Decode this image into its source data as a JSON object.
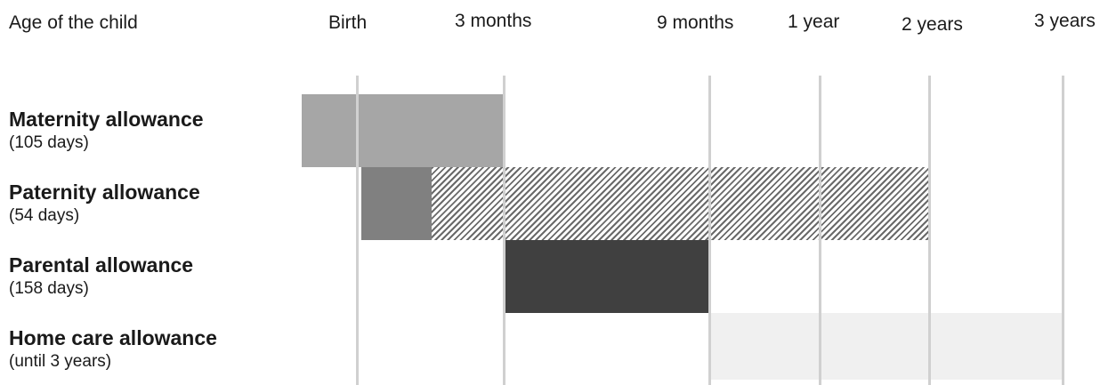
{
  "header": {
    "age_label": "Age of the child"
  },
  "ticks": [
    {
      "id": "birth",
      "label": "Birth"
    },
    {
      "id": "3-months",
      "label": "3 months"
    },
    {
      "id": "9-months",
      "label": "9 months"
    },
    {
      "id": "1-year",
      "label": "1 year"
    },
    {
      "id": "2-years",
      "label": "2 years"
    },
    {
      "id": "3-years",
      "label": "3 years"
    }
  ],
  "rows": [
    {
      "id": "maternity",
      "title": "Maternity allowance",
      "duration": "(105 days)"
    },
    {
      "id": "paternity",
      "title": "Paternity allowance",
      "duration": "(54 days)"
    },
    {
      "id": "parental",
      "title": "Parental allowance",
      "duration": "(158 days)"
    },
    {
      "id": "homecare",
      "title": "Home care allowance",
      "duration": "(until 3 years)"
    }
  ],
  "colors": {
    "maternity_bar": "#a6a6a6",
    "paternity_solid_bar": "#808080",
    "paternity_hatched_bar": "#6a6a6a",
    "parental_bar": "#404040",
    "homecare_bar": "#f0f0f0",
    "gridline": "#d0d0d0"
  }
}
